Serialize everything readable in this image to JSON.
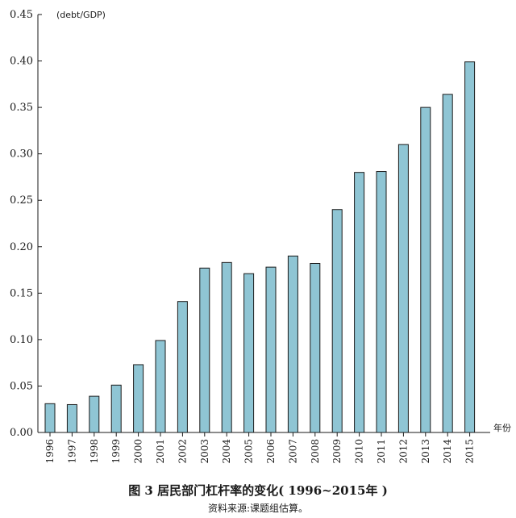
{
  "chart_data": {
    "type": "bar",
    "title": "图 3  居民部门杠杆率的变化( 1996~2015年 )",
    "source": "资料来源:课题组估算。",
    "ylabel": "(debt/GDP)",
    "xlabel": "年份",
    "ylim": [
      0,
      0.45
    ],
    "yticks": [
      "0.00",
      "0.05",
      "0.10",
      "0.15",
      "0.20",
      "0.25",
      "0.30",
      "0.35",
      "0.40",
      "0.45"
    ],
    "categories": [
      "1996",
      "1997",
      "1998",
      "1999",
      "2000",
      "2001",
      "2002",
      "2003",
      "2004",
      "2005",
      "2006",
      "2007",
      "2008",
      "2009",
      "2010",
      "2011",
      "2012",
      "2013",
      "2014",
      "2015"
    ],
    "values": [
      0.031,
      0.03,
      0.039,
      0.051,
      0.073,
      0.099,
      0.141,
      0.177,
      0.183,
      0.171,
      0.178,
      0.19,
      0.182,
      0.24,
      0.28,
      0.281,
      0.31,
      0.35,
      0.364,
      0.399
    ],
    "bar_color": "#8fc5d4",
    "bar_stroke": "#1a1a1a",
    "grid": false
  }
}
